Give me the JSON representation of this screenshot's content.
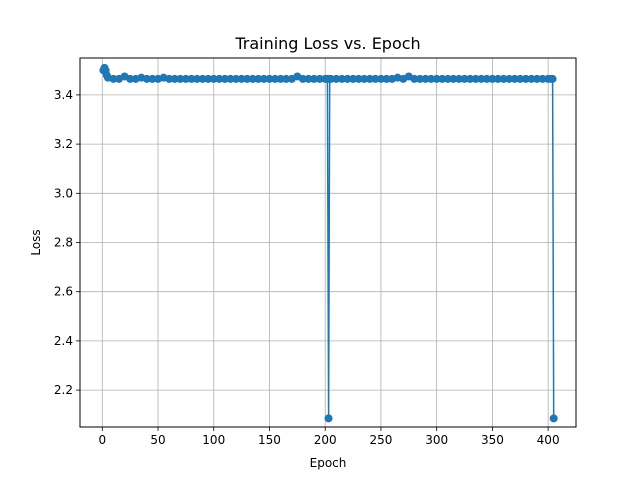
{
  "chart_data": {
    "type": "line",
    "title": "Training Loss vs. Epoch",
    "xlabel": "Epoch",
    "ylabel": "Loss",
    "xlim": [
      -20,
      425
    ],
    "ylim": [
      2.05,
      3.55
    ],
    "xticks": [
      0,
      50,
      100,
      150,
      200,
      250,
      300,
      350,
      400
    ],
    "yticks": [
      2.2,
      2.4,
      2.6,
      2.8,
      3.0,
      3.2,
      3.4
    ],
    "ytick_labels": [
      "2.2",
      "2.4",
      "2.6",
      "2.8",
      "3.0",
      "3.2",
      "3.4"
    ],
    "grid": true,
    "color": "#1f77b4",
    "marker": "circle",
    "series": [
      {
        "x": [
          1,
          2,
          3,
          4,
          5,
          10,
          15,
          20,
          25,
          30,
          35,
          40,
          45,
          50,
          55,
          60,
          65,
          70,
          75,
          80,
          85,
          90,
          95,
          100,
          105,
          110,
          115,
          120,
          125,
          130,
          135,
          140,
          145,
          150,
          155,
          160,
          165,
          170,
          175,
          180,
          185,
          190,
          195,
          200,
          202,
          203,
          204,
          205,
          210,
          215,
          220,
          225,
          230,
          235,
          240,
          245,
          250,
          255,
          260,
          265,
          270,
          275,
          280,
          285,
          290,
          295,
          300,
          305,
          310,
          315,
          320,
          325,
          330,
          335,
          340,
          345,
          350,
          355,
          360,
          365,
          370,
          375,
          380,
          385,
          390,
          395,
          400,
          403,
          404,
          405
        ],
        "y": [
          3.5,
          3.51,
          3.5,
          3.48,
          3.47,
          3.465,
          3.465,
          3.475,
          3.465,
          3.465,
          3.47,
          3.465,
          3.465,
          3.465,
          3.47,
          3.465,
          3.465,
          3.465,
          3.465,
          3.465,
          3.465,
          3.465,
          3.465,
          3.465,
          3.465,
          3.465,
          3.465,
          3.465,
          3.465,
          3.465,
          3.465,
          3.465,
          3.465,
          3.465,
          3.465,
          3.465,
          3.465,
          3.465,
          3.475,
          3.465,
          3.465,
          3.465,
          3.465,
          3.465,
          3.465,
          2.085,
          3.465,
          3.465,
          3.465,
          3.465,
          3.465,
          3.465,
          3.465,
          3.465,
          3.465,
          3.465,
          3.465,
          3.465,
          3.465,
          3.47,
          3.465,
          3.475,
          3.465,
          3.465,
          3.465,
          3.465,
          3.465,
          3.465,
          3.465,
          3.465,
          3.465,
          3.465,
          3.465,
          3.465,
          3.465,
          3.465,
          3.465,
          3.465,
          3.465,
          3.465,
          3.465,
          3.465,
          3.465,
          3.465,
          3.465,
          3.465,
          3.465,
          3.465,
          3.465,
          2.085
        ]
      }
    ]
  }
}
